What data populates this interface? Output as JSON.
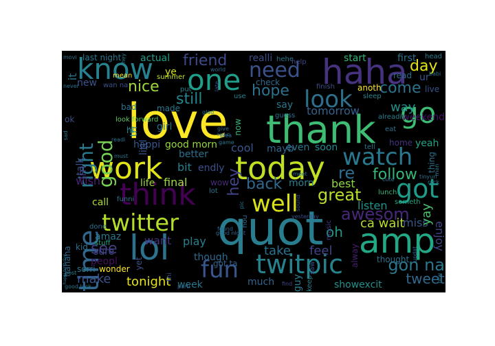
{
  "wordcloud": {
    "background": "#000000",
    "words": [
      {
        "text": "love",
        "color": "#fde725"
      },
      {
        "text": "thank",
        "color": "#3fbc73"
      },
      {
        "text": "quot",
        "color": "#287d8e"
      },
      {
        "text": "haha",
        "color": "#46327e"
      },
      {
        "text": "today",
        "color": "#c2df23"
      },
      {
        "text": "work",
        "color": "#e2e418"
      },
      {
        "text": "lol",
        "color": "#2c728e"
      },
      {
        "text": "amp",
        "color": "#22a884"
      },
      {
        "text": "one",
        "color": "#1f9e89"
      },
      {
        "text": "know",
        "color": "#26828e"
      },
      {
        "text": "think",
        "color": "#440154"
      },
      {
        "text": "go",
        "color": "#3dbc74"
      },
      {
        "text": "twitpic",
        "color": "#25838e"
      },
      {
        "text": "watch",
        "color": "#2a788e"
      },
      {
        "text": "got",
        "color": "#1e9c89"
      },
      {
        "text": "twitter",
        "color": "#b5de2b"
      },
      {
        "text": "time",
        "color": "#31668e"
      },
      {
        "text": "well",
        "color": "#d8e219"
      },
      {
        "text": "look",
        "color": "#2d708e"
      },
      {
        "text": "need",
        "color": "#3b528b"
      },
      {
        "text": "fun",
        "color": "#39568c"
      },
      {
        "text": "good",
        "color": "#75d054"
      },
      {
        "text": "right",
        "color": "#29798e"
      },
      {
        "text": "awesom",
        "color": "#482878"
      },
      {
        "text": "great",
        "color": "#b8de29"
      },
      {
        "text": "gon na",
        "color": "#2a778e"
      },
      {
        "text": "back",
        "color": "#31688e"
      },
      {
        "text": "follow",
        "color": "#35b779"
      },
      {
        "text": "friend",
        "color": "#3e4a89"
      },
      {
        "text": "nice",
        "color": "#9fda3a"
      },
      {
        "text": "hope",
        "color": "#2c728e"
      },
      {
        "text": "come",
        "color": "#2b748e"
      },
      {
        "text": "still",
        "color": "#24878e"
      },
      {
        "text": "day",
        "color": "#e5e419"
      },
      {
        "text": "tomorrow",
        "color": "#34618d"
      },
      {
        "text": "re",
        "color": "#2e6e8e"
      },
      {
        "text": "hey",
        "color": "#414487"
      },
      {
        "text": "see",
        "color": "#423f85"
      },
      {
        "text": "make",
        "color": "#3b518b"
      },
      {
        "text": "tweet",
        "color": "#31688e"
      },
      {
        "text": "oh",
        "color": "#1f978b"
      },
      {
        "text": "way",
        "color": "#21908d"
      },
      {
        "text": "want",
        "color": "#46327e"
      },
      {
        "text": "tonight",
        "color": "#e5e419"
      },
      {
        "text": "play",
        "color": "#26828e"
      },
      {
        "text": "feel",
        "color": "#414487"
      },
      {
        "text": "take",
        "color": "#2c728e"
      },
      {
        "text": "listen",
        "color": "#20938c"
      },
      {
        "text": "ca wait",
        "color": "#b5de2b"
      },
      {
        "text": "miss",
        "color": "#38588c"
      },
      {
        "text": "yay",
        "color": "#48c16e"
      },
      {
        "text": "enjoy",
        "color": "#404688"
      },
      {
        "text": "best",
        "color": "#90d743"
      },
      {
        "text": "much",
        "color": "#32648e"
      },
      {
        "text": "showexcit",
        "color": "#21918c"
      },
      {
        "text": "thought",
        "color": "#2d708e"
      },
      {
        "text": "yeah",
        "color": "#20a486"
      },
      {
        "text": "weekend",
        "color": "#471164"
      },
      {
        "text": "good morn",
        "color": "#98d83e"
      },
      {
        "text": "happi",
        "color": "#38588c"
      },
      {
        "text": "girl",
        "color": "#2c738e"
      },
      {
        "text": "better",
        "color": "#2d708e"
      },
      {
        "text": "bit",
        "color": "#27808e"
      },
      {
        "text": "endly",
        "color": "#3c4f8a"
      },
      {
        "text": "cool",
        "color": "#3a548c"
      },
      {
        "text": "mayb",
        "color": "#31668e"
      },
      {
        "text": "even",
        "color": "#2a768e"
      },
      {
        "text": "soon",
        "color": "#24878e"
      },
      {
        "text": "life",
        "color": "#a0da39"
      },
      {
        "text": "final",
        "color": "#a0da39"
      },
      {
        "text": "call",
        "color": "#addc30"
      },
      {
        "text": "wish",
        "color": "#482173"
      },
      {
        "text": "im",
        "color": "#46307e"
      },
      {
        "text": "talk",
        "color": "#3b528b"
      },
      {
        "text": "littl",
        "color": "#38598c"
      },
      {
        "text": "new",
        "color": "#3b528b"
      },
      {
        "text": "it",
        "color": "#2b758e"
      },
      {
        "text": "last night",
        "color": "#2a788e"
      },
      {
        "text": "actual",
        "color": "#1f9e89"
      },
      {
        "text": "realli",
        "color": "#3d4d8a"
      },
      {
        "text": "start",
        "color": "#32b67a"
      },
      {
        "text": "first",
        "color": "#2c728e"
      },
      {
        "text": "head",
        "color": "#287d8e"
      },
      {
        "text": "ye",
        "color": "#d0e11c"
      },
      {
        "text": "say",
        "color": "#2a778e"
      },
      {
        "text": "sleep",
        "color": "#25858e"
      },
      {
        "text": "read",
        "color": "#2f6c8e"
      },
      {
        "text": "ur",
        "color": "#3a548c"
      },
      {
        "text": "live",
        "color": "#3a538b"
      },
      {
        "text": "bad",
        "color": "#2c728e"
      },
      {
        "text": "made",
        "color": "#29788e"
      },
      {
        "text": "tri",
        "color": "#26818e"
      },
      {
        "text": "hi",
        "color": "#228c8d"
      },
      {
        "text": "ok",
        "color": "#3c4f8a"
      },
      {
        "text": "look forward",
        "color": "#5ec962"
      },
      {
        "text": "summer",
        "color": "#c5e021"
      },
      {
        "text": "amaz",
        "color": "#2a788e"
      },
      {
        "text": "peopl",
        "color": "#471063"
      },
      {
        "text": "sure",
        "color": "#3f4788"
      },
      {
        "text": "wow",
        "color": "#472c7a"
      },
      {
        "text": "morn",
        "color": "#26828e"
      },
      {
        "text": "hahaha",
        "color": "#31688e"
      },
      {
        "text": "kid",
        "color": "#2c728e"
      },
      {
        "text": "sorri",
        "color": "#2a788e"
      },
      {
        "text": "wonder",
        "color": "#fde725"
      },
      {
        "text": "yet",
        "color": "#3b528b"
      },
      {
        "text": "week",
        "color": "#29798e"
      },
      {
        "text": "though",
        "color": "#306a8e"
      },
      {
        "text": "got ta",
        "color": "#33638d"
      },
      {
        "text": "guy",
        "color": "#287d8e"
      },
      {
        "text": "done",
        "color": "#2c718e"
      },
      {
        "text": "stuff",
        "color": "#22a785"
      },
      {
        "text": "funni",
        "color": "#2a788e"
      },
      {
        "text": "lunch",
        "color": "#35b779"
      },
      {
        "text": "someth",
        "color": "#22a884"
      },
      {
        "text": "alway",
        "color": "#481f70"
      },
      {
        "text": "music",
        "color": "#443983"
      },
      {
        "text": "hou",
        "color": "#2f6b8e"
      },
      {
        "text": "saw",
        "color": "#3b528b"
      },
      {
        "text": "keep",
        "color": "#26828e"
      },
      {
        "text": "hehe",
        "color": "#29798e"
      },
      {
        "text": "check",
        "color": "#306a8e"
      },
      {
        "text": "finish",
        "color": "#3d4e8a"
      },
      {
        "text": "anoth",
        "color": "#fde725"
      },
      {
        "text": "alreadi",
        "color": "#27808e"
      },
      {
        "text": "guess",
        "color": "#2d708e"
      },
      {
        "text": "tell",
        "color": "#2a788e"
      },
      {
        "text": "home",
        "color": "#46337f"
      },
      {
        "text": "eat",
        "color": "#2e6f8e"
      },
      {
        "text": "mean",
        "color": "#fde725"
      },
      {
        "text": "lot",
        "color": "#2b758e"
      },
      {
        "text": "thing",
        "color": "#2d708e"
      },
      {
        "text": "help",
        "color": "#3e4989"
      },
      {
        "text": "hey",
        "color": "#2a788e"
      },
      {
        "text": "movi",
        "color": "#2c728e"
      },
      {
        "text": "wan na",
        "color": "#3b528b"
      },
      {
        "text": "put",
        "color": "#287d8e"
      },
      {
        "text": "use",
        "color": "#26818e"
      },
      {
        "text": "world",
        "color": "#306a8e"
      },
      {
        "text": "happi birthday",
        "color": "#2c728e"
      },
      {
        "text": "good night",
        "color": "#31688e"
      },
      {
        "text": "good luck",
        "color": "#29798e"
      },
      {
        "text": "yesterday",
        "color": "#3b528b"
      },
      {
        "text": "find",
        "color": "#404688"
      },
      {
        "text": "cute",
        "color": "#2e6e8e"
      },
      {
        "text": "man",
        "color": "#2a788e"
      },
      {
        "text": "pic",
        "color": "#2d708e"
      },
      {
        "text": "sound",
        "color": "#3b528b"
      },
      {
        "text": "updat",
        "color": "#31668e"
      },
      {
        "text": "btw",
        "color": "#29798e"
      },
      {
        "text": "babi",
        "color": "#2c728e"
      },
      {
        "text": "tinyurl",
        "color": "#2e6e8e"
      },
      {
        "text": "plea",
        "color": "#31668e"
      },
      {
        "text": "game",
        "color": "#2a788e"
      },
      {
        "text": "give",
        "color": "#31688e"
      },
      {
        "text": "now",
        "color": "#35b779"
      },
      {
        "text": "post",
        "color": "#26828e"
      },
      {
        "text": "thi",
        "color": "#3b528b"
      },
      {
        "text": "readi",
        "color": "#2c728e"
      },
      {
        "text": "must",
        "color": "#2a788e"
      },
      {
        "text": "sad",
        "color": "#2d708e"
      },
      {
        "text": "parti",
        "color": "#31688e"
      },
      {
        "text": "never",
        "color": "#2c728e"
      },
      {
        "text": "glad",
        "color": "#29798e"
      },
      {
        "text": "rock",
        "color": "#2a788e"
      },
      {
        "text": "beauti",
        "color": "#2e6e8e"
      },
      {
        "text": "found",
        "color": "#31668e"
      },
      {
        "text": "meet",
        "color": "#2c728e"
      },
      {
        "text": "late",
        "color": "#3b528b"
      },
      {
        "text": "bed",
        "color": "#2a788e"
      }
    ]
  }
}
